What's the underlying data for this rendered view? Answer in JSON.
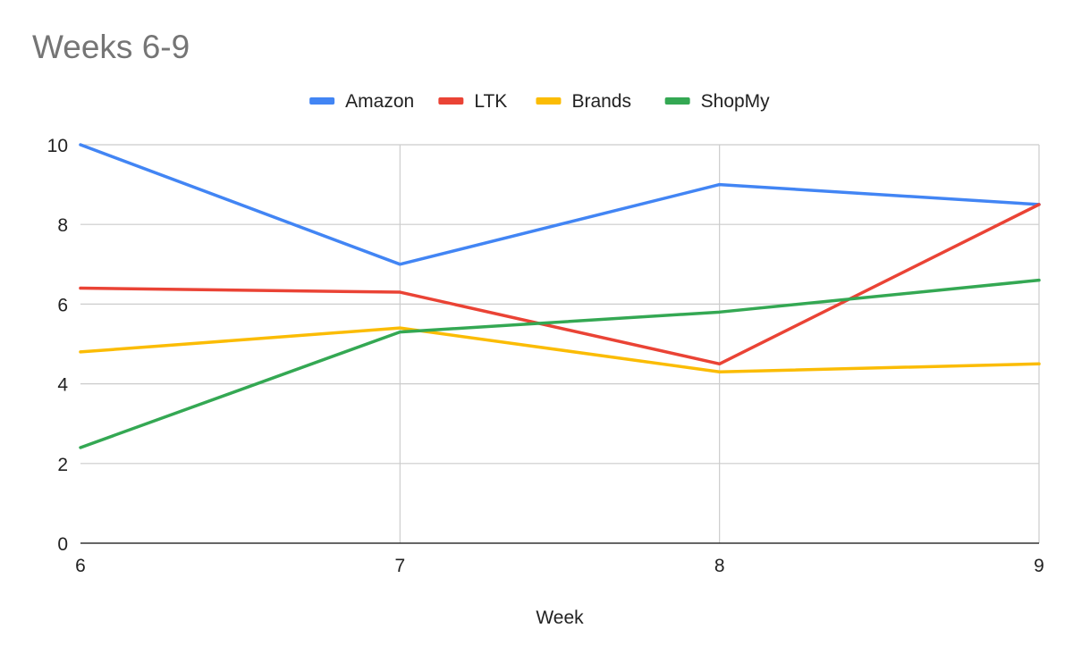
{
  "chart_data": {
    "type": "line",
    "title": "Weeks 6-9",
    "xlabel": "Week",
    "ylabel": "",
    "x": [
      6,
      7,
      8,
      9
    ],
    "xlim": [
      6,
      9
    ],
    "ylim": [
      0,
      10
    ],
    "yticks": [
      0,
      2,
      4,
      6,
      8,
      10
    ],
    "xticks": [
      6,
      7,
      8,
      9
    ],
    "grid": true,
    "legend_position": "top",
    "series": [
      {
        "name": "Amazon",
        "color": "#4285f4",
        "values": [
          10,
          7,
          9,
          8.5
        ]
      },
      {
        "name": "LTK",
        "color": "#ea4335",
        "values": [
          6.4,
          6.3,
          4.5,
          8.5
        ]
      },
      {
        "name": "Brands",
        "color": "#fbbc04",
        "values": [
          4.8,
          5.4,
          4.3,
          4.5
        ]
      },
      {
        "name": "ShopMy",
        "color": "#34a853",
        "values": [
          2.4,
          5.3,
          5.8,
          6.6
        ]
      }
    ]
  }
}
